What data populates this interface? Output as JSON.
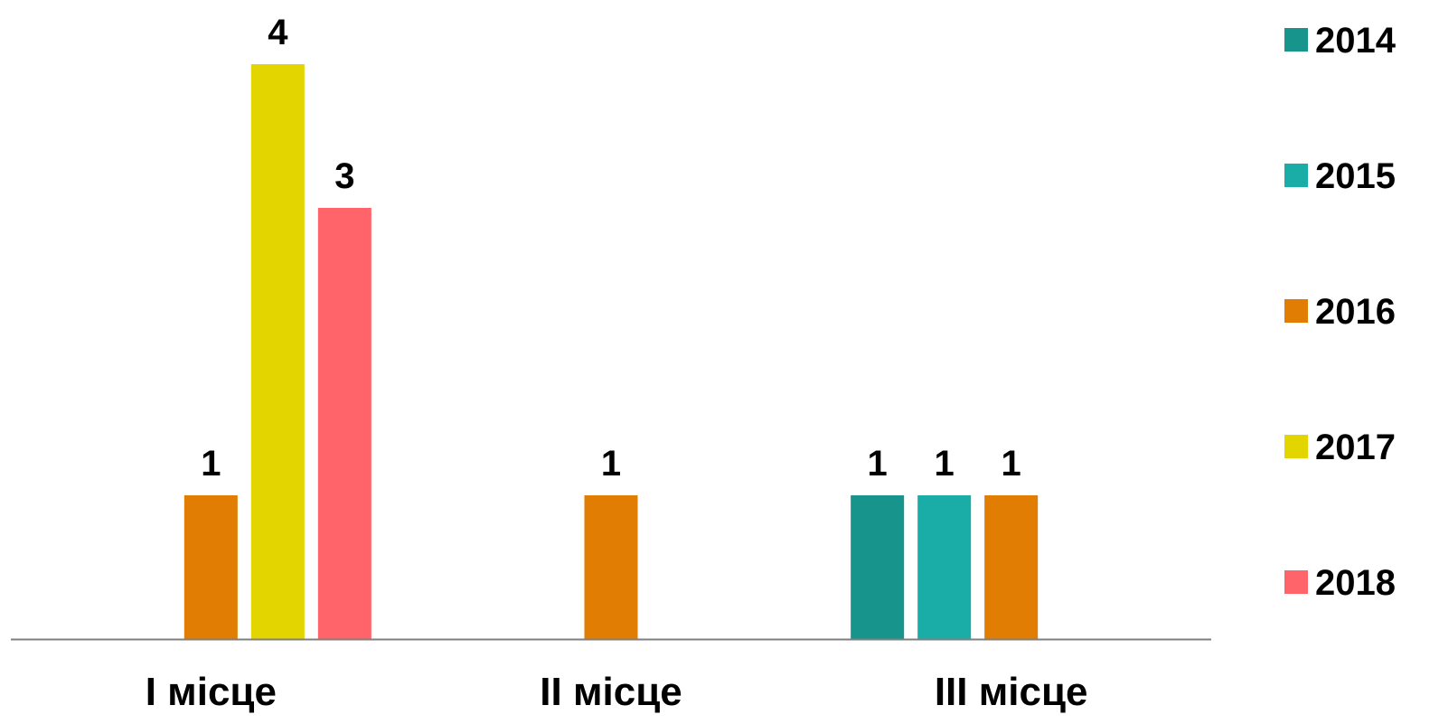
{
  "chart_data": {
    "type": "bar",
    "categories": [
      "І місце",
      "ІІ місце",
      "ІІІ місце"
    ],
    "series": [
      {
        "name": "2014",
        "color": "#17948C",
        "values": [
          null,
          null,
          1
        ]
      },
      {
        "name": "2015",
        "color": "#1AADA8",
        "values": [
          null,
          null,
          1
        ]
      },
      {
        "name": "2016",
        "color": "#E27D03",
        "values": [
          1,
          1,
          1
        ]
      },
      {
        "name": "2017",
        "color": "#E3D600",
        "values": [
          4,
          null,
          null
        ]
      },
      {
        "name": "2018",
        "color": "#FF646A",
        "values": [
          3,
          null,
          null
        ]
      }
    ],
    "title": "",
    "xlabel": "",
    "ylabel": "",
    "ylim": [
      0,
      4
    ],
    "grid": false,
    "legend": "right",
    "data_labels": true,
    "axis_line_color": "#7F7F7F"
  }
}
